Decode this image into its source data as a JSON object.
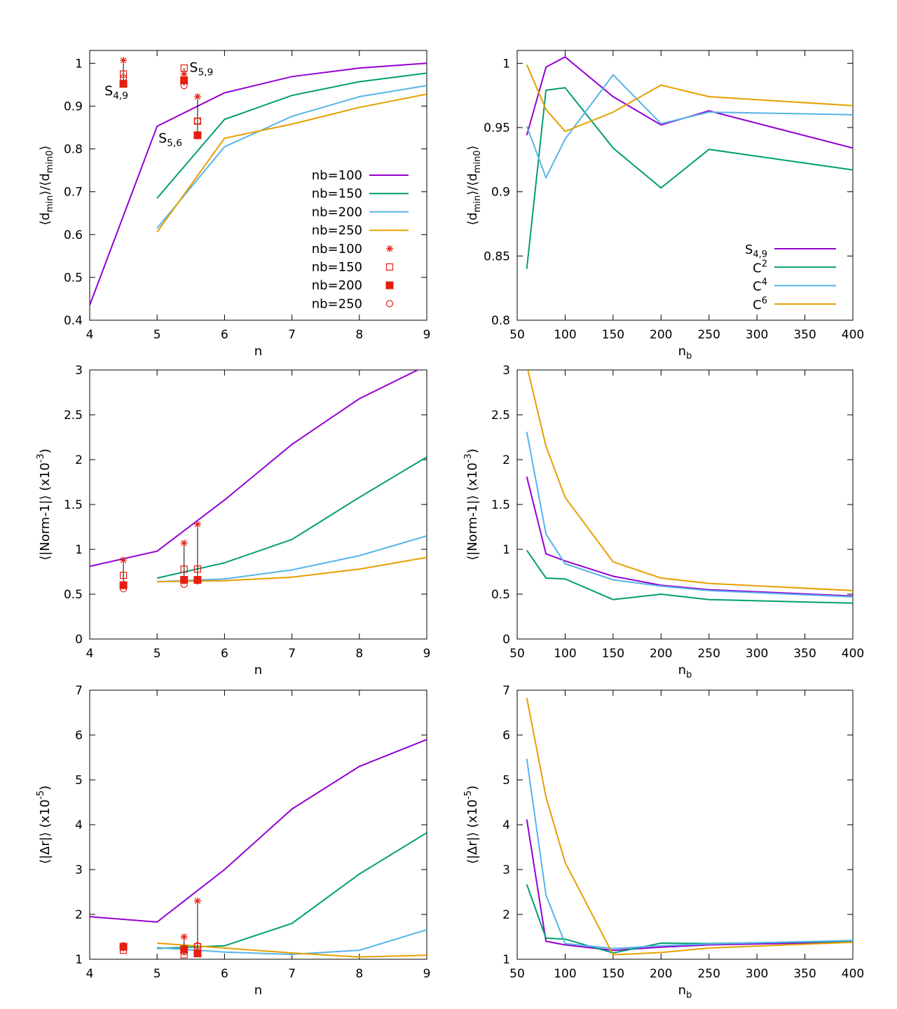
{
  "colors": {
    "nb100": "#9400d3",
    "nb150": "#009e73",
    "nb200": "#56b4e9",
    "nb250": "#e69f00",
    "points": "#e51e10"
  },
  "chart_data": [
    {
      "type": "line",
      "xlabel": "n",
      "ylabel": "⟨dmin⟩/⟨dmin0⟩",
      "xlim": [
        4,
        9
      ],
      "ylim": [
        0.4,
        1.03
      ],
      "xticks": [
        4,
        5,
        6,
        7,
        8,
        9
      ],
      "xtick_labels": [
        "4",
        "5",
        "6",
        "7",
        "8",
        "9"
      ],
      "yticks": [
        0.4,
        0.5,
        0.6,
        0.7,
        0.8,
        0.9,
        1.0
      ],
      "ytick_labels": [
        "0.4",
        "0.5",
        "0.6",
        "0.7",
        "0.8",
        "0.9",
        "1"
      ],
      "legend_position": "bottom-right",
      "series": [
        {
          "name": "nb=100",
          "color": "#9400d3",
          "x": [
            4,
            5,
            6,
            7,
            8,
            9
          ],
          "y": [
            0.435,
            0.853,
            0.931,
            0.969,
            0.989,
            1.0
          ]
        },
        {
          "name": "nb=150",
          "color": "#009e73",
          "x": [
            5,
            6,
            7,
            8,
            9
          ],
          "y": [
            0.685,
            0.869,
            0.925,
            0.957,
            0.977
          ]
        },
        {
          "name": "nb=200",
          "color": "#56b4e9",
          "x": [
            5,
            6,
            7,
            8,
            9
          ],
          "y": [
            0.615,
            0.805,
            0.876,
            0.922,
            0.948
          ]
        },
        {
          "name": "nb=250",
          "color": "#e69f00",
          "x": [
            5,
            6,
            7,
            8,
            9
          ],
          "y": [
            0.606,
            0.825,
            0.858,
            0.897,
            0.928
          ]
        }
      ],
      "point_series": [
        {
          "name": "nb=100",
          "marker": "star",
          "x": [
            4.5,
            5.4,
            5.6
          ],
          "y": [
            1.007,
            0.975,
            0.922
          ]
        },
        {
          "name": "nb=150",
          "marker": "open-square",
          "x": [
            4.5,
            5.4,
            5.6
          ],
          "y": [
            0.975,
            0.989,
            0.865
          ]
        },
        {
          "name": "nb=200",
          "marker": "filled-square",
          "x": [
            4.5,
            5.4,
            5.6
          ],
          "y": [
            0.952,
            0.96,
            0.832
          ]
        },
        {
          "name": "nb=250",
          "marker": "open-circle",
          "x": [
            4.5,
            5.4,
            5.6
          ],
          "y": [
            0.966,
            0.948,
            0.865
          ]
        }
      ],
      "annotations": [
        {
          "text": "S",
          "sub": "4,9",
          "x": 4.22,
          "y": 0.925
        },
        {
          "text": "S",
          "sub": "5,9",
          "x": 5.48,
          "y": 0.98
        },
        {
          "text": "S",
          "sub": "5,6",
          "x": 5.02,
          "y": 0.815
        }
      ]
    },
    {
      "type": "line",
      "xlabel": "nb",
      "ylabel": "⟨dmin⟩/⟨dmin0⟩",
      "xlim": [
        50,
        400
      ],
      "ylim": [
        0.8,
        1.01
      ],
      "xticks": [
        50,
        100,
        150,
        200,
        250,
        300,
        350,
        400
      ],
      "xtick_labels": [
        "50",
        "100",
        "150",
        "200",
        "250",
        "300",
        "350",
        "400"
      ],
      "yticks": [
        0.8,
        0.85,
        0.9,
        0.95,
        1.0
      ],
      "ytick_labels": [
        "0.8",
        "0.85",
        "0.9",
        "0.95",
        "1"
      ],
      "legend_position": "bottom-right",
      "series": [
        {
          "name": "S4,9",
          "color": "#9400d3",
          "x": [
            60,
            80,
            100,
            150,
            200,
            250,
            400
          ],
          "y": [
            0.944,
            0.997,
            1.005,
            0.974,
            0.952,
            0.963,
            0.934
          ]
        },
        {
          "name": "C2",
          "color": "#009e73",
          "x": [
            60,
            80,
            100,
            150,
            200,
            250,
            400
          ],
          "y": [
            0.84,
            0.979,
            0.981,
            0.934,
            0.903,
            0.933,
            0.917
          ]
        },
        {
          "name": "C4",
          "color": "#56b4e9",
          "x": [
            60,
            80,
            100,
            150,
            200,
            250,
            400
          ],
          "y": [
            0.951,
            0.911,
            0.941,
            0.991,
            0.953,
            0.962,
            0.96
          ]
        },
        {
          "name": "C6",
          "color": "#e69f00",
          "x": [
            60,
            80,
            100,
            150,
            200,
            250,
            400
          ],
          "y": [
            0.999,
            0.964,
            0.947,
            0.962,
            0.983,
            0.974,
            0.967
          ]
        }
      ]
    },
    {
      "type": "line",
      "xlabel": "n",
      "ylabel": "⟨|Norm-1|⟩ (x10-3)",
      "xlim": [
        4,
        9
      ],
      "ylim": [
        0,
        3
      ],
      "xticks": [
        4,
        5,
        6,
        7,
        8,
        9
      ],
      "xtick_labels": [
        "4",
        "5",
        "6",
        "7",
        "8",
        "9"
      ],
      "yticks": [
        0,
        0.5,
        1,
        1.5,
        2,
        2.5,
        3
      ],
      "ytick_labels": [
        "0",
        "0.5",
        "1",
        "1.5",
        "2",
        "2.5",
        "3"
      ],
      "series": [
        {
          "name": "nb=100",
          "color": "#9400d3",
          "x": [
            4,
            5,
            6,
            7,
            8,
            9
          ],
          "y": [
            0.81,
            0.98,
            1.55,
            2.17,
            2.68,
            3.05
          ]
        },
        {
          "name": "nb=150",
          "color": "#009e73",
          "x": [
            5,
            6,
            7,
            8,
            9
          ],
          "y": [
            0.68,
            0.85,
            1.11,
            1.58,
            2.03
          ]
        },
        {
          "name": "nb=200",
          "color": "#56b4e9",
          "x": [
            5,
            6,
            7,
            8,
            9
          ],
          "y": [
            0.64,
            0.67,
            0.77,
            0.93,
            1.15
          ]
        },
        {
          "name": "nb=250",
          "color": "#e69f00",
          "x": [
            5,
            6,
            7,
            8,
            9
          ],
          "y": [
            0.64,
            0.65,
            0.69,
            0.78,
            0.91
          ]
        }
      ],
      "point_series": [
        {
          "name": "nb=100",
          "marker": "star",
          "x": [
            4.5,
            5.4,
            5.6
          ],
          "y": [
            0.88,
            1.07,
            1.28
          ]
        },
        {
          "name": "nb=150",
          "marker": "open-square",
          "x": [
            4.5,
            5.4,
            5.6
          ],
          "y": [
            0.71,
            0.78,
            0.78
          ]
        },
        {
          "name": "nb=200",
          "marker": "filled-square",
          "x": [
            4.5,
            5.4,
            5.6
          ],
          "y": [
            0.6,
            0.66,
            0.66
          ]
        },
        {
          "name": "nb=250",
          "marker": "open-circle",
          "x": [
            4.5,
            5.4,
            5.6
          ],
          "y": [
            0.56,
            0.61,
            0.65
          ]
        }
      ]
    },
    {
      "type": "line",
      "xlabel": "nb",
      "ylabel": "⟨|Norm-1|⟩ (x10-3)",
      "xlim": [
        50,
        400
      ],
      "ylim": [
        0,
        3
      ],
      "xticks": [
        50,
        100,
        150,
        200,
        250,
        300,
        350,
        400
      ],
      "xtick_labels": [
        "50",
        "100",
        "150",
        "200",
        "250",
        "300",
        "350",
        "400"
      ],
      "yticks": [
        0,
        0.5,
        1,
        1.5,
        2,
        2.5,
        3
      ],
      "ytick_labels": [
        "0",
        "0.5",
        "1",
        "1.5",
        "2",
        "2.5",
        "3"
      ],
      "series": [
        {
          "name": "S4,9",
          "color": "#9400d3",
          "x": [
            60,
            80,
            100,
            150,
            200,
            250,
            400
          ],
          "y": [
            1.81,
            0.95,
            0.87,
            0.7,
            0.6,
            0.55,
            0.48
          ]
        },
        {
          "name": "C2",
          "color": "#009e73",
          "x": [
            60,
            80,
            100,
            150,
            200,
            250,
            400
          ],
          "y": [
            0.99,
            0.68,
            0.67,
            0.44,
            0.5,
            0.44,
            0.4
          ]
        },
        {
          "name": "C4",
          "color": "#56b4e9",
          "x": [
            60,
            80,
            100,
            150,
            200,
            250,
            400
          ],
          "y": [
            2.31,
            1.17,
            0.84,
            0.66,
            0.59,
            0.54,
            0.47
          ]
        },
        {
          "name": "C6",
          "color": "#e69f00",
          "x": [
            60,
            80,
            100,
            150,
            200,
            250,
            400
          ],
          "y": [
            3.05,
            2.15,
            1.58,
            0.86,
            0.68,
            0.62,
            0.54
          ]
        }
      ]
    },
    {
      "type": "line",
      "xlabel": "n",
      "ylabel": "⟨|Δr|⟩ (x10-5)",
      "xlim": [
        4,
        9
      ],
      "ylim": [
        1,
        7
      ],
      "xticks": [
        4,
        5,
        6,
        7,
        8,
        9
      ],
      "xtick_labels": [
        "4",
        "5",
        "6",
        "7",
        "8",
        "9"
      ],
      "yticks": [
        1,
        2,
        3,
        4,
        5,
        6,
        7
      ],
      "ytick_labels": [
        "1",
        "2",
        "3",
        "4",
        "5",
        "6",
        "7"
      ],
      "series": [
        {
          "name": "nb=100",
          "color": "#9400d3",
          "x": [
            4,
            5,
            6,
            7,
            8,
            9
          ],
          "y": [
            1.95,
            1.83,
            3.0,
            4.35,
            5.3,
            5.9
          ]
        },
        {
          "name": "nb=150",
          "color": "#009e73",
          "x": [
            5,
            6,
            7,
            8,
            9
          ],
          "y": [
            1.24,
            1.3,
            1.8,
            2.9,
            3.82
          ]
        },
        {
          "name": "nb=200",
          "color": "#56b4e9",
          "x": [
            5,
            6,
            7,
            8,
            9
          ],
          "y": [
            1.26,
            1.16,
            1.11,
            1.2,
            1.66
          ]
        },
        {
          "name": "nb=250",
          "color": "#e69f00",
          "x": [
            5,
            6,
            7,
            8,
            9
          ],
          "y": [
            1.36,
            1.25,
            1.14,
            1.05,
            1.09
          ]
        }
      ],
      "point_series": [
        {
          "name": "nb=100",
          "marker": "star",
          "x": [
            4.5,
            5.4,
            5.6
          ],
          "y": [
            1.25,
            1.5,
            2.3
          ]
        },
        {
          "name": "nb=150",
          "marker": "open-square",
          "x": [
            4.5,
            5.4,
            5.6
          ],
          "y": [
            1.2,
            1.1,
            1.28
          ]
        },
        {
          "name": "nb=200",
          "marker": "filled-square",
          "x": [
            4.5,
            5.4,
            5.6
          ],
          "y": [
            1.28,
            1.22,
            1.13
          ]
        },
        {
          "name": "nb=250",
          "marker": "open-circle",
          "x": [
            4.5,
            5.4,
            5.6
          ],
          "y": [
            1.3,
            1.17,
            1.3
          ]
        }
      ]
    },
    {
      "type": "line",
      "xlabel": "nb",
      "ylabel": "⟨|Δr|⟩ (x10-5)",
      "xlim": [
        50,
        400
      ],
      "ylim": [
        1,
        7
      ],
      "xticks": [
        50,
        100,
        150,
        200,
        250,
        300,
        350,
        400
      ],
      "xtick_labels": [
        "50",
        "100",
        "150",
        "200",
        "250",
        "300",
        "350",
        "400"
      ],
      "yticks": [
        1,
        2,
        3,
        4,
        5,
        6,
        7
      ],
      "ytick_labels": [
        "1",
        "2",
        "3",
        "4",
        "5",
        "6",
        "7"
      ],
      "series": [
        {
          "name": "S4,9",
          "color": "#9400d3",
          "x": [
            60,
            80,
            100,
            150,
            200,
            250,
            400
          ],
          "y": [
            4.12,
            1.4,
            1.32,
            1.2,
            1.27,
            1.32,
            1.38
          ]
        },
        {
          "name": "C2",
          "color": "#009e73",
          "x": [
            60,
            80,
            100,
            150,
            200,
            250,
            400
          ],
          "y": [
            2.67,
            1.47,
            1.45,
            1.14,
            1.36,
            1.35,
            1.4
          ]
        },
        {
          "name": "C4",
          "color": "#56b4e9",
          "x": [
            60,
            80,
            100,
            150,
            200,
            250,
            400
          ],
          "y": [
            5.47,
            2.43,
            1.35,
            1.24,
            1.3,
            1.34,
            1.42
          ]
        },
        {
          "name": "C6",
          "color": "#e69f00",
          "x": [
            60,
            80,
            100,
            150,
            200,
            250,
            400
          ],
          "y": [
            6.83,
            4.62,
            3.16,
            1.1,
            1.15,
            1.25,
            1.38
          ]
        }
      ]
    }
  ]
}
